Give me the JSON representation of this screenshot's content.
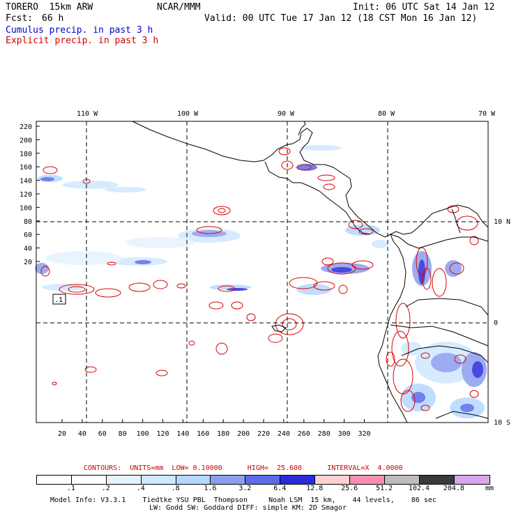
{
  "header": {
    "model": "TORERO  15km ARW",
    "org": "NCAR/MMM",
    "init": "Init: 06 UTC Sat 14 Jan 12",
    "fcst_label": "Fcst:",
    "fcst_value": "66 h",
    "valid": "Valid: 00 UTC Tue 17 Jan 12 (18 CST Mon 16 Jan 12)",
    "field1": "Cumulus precip. in past 3 h",
    "field2": "Explicit precip. in past 3 h",
    "field1_color": "#0000cc",
    "field2_color": "#cc0000"
  },
  "map": {
    "lon_labels": [
      "110 W",
      "100 W",
      "90 W",
      "80 W",
      "70 W"
    ],
    "lat_labels": [
      "10 N",
      "0",
      "10 S"
    ],
    "y_ticks": [
      "220",
      "200",
      "180",
      "160",
      "140",
      "120",
      "100",
      "80",
      "60",
      "40",
      "20"
    ],
    "x_ticks": [
      "20",
      "40",
      "60",
      "80",
      "100",
      "120",
      "140",
      "160",
      "180",
      "200",
      "220",
      "240",
      "260",
      "280",
      "300",
      "320"
    ],
    "box_label": ".1"
  },
  "contours": "CONTOURS:  UNITS=mm  LOW= 0.10000      HIGH=  25.600      INTERVAL=X  4.0000",
  "colorbar": {
    "labels": [
      ".1",
      ".2",
      ".4",
      ".8",
      "1.6",
      "3.2",
      "6.4",
      "12.8",
      "25.6",
      "51.2",
      "102.4",
      "204.8"
    ],
    "unit": "mm",
    "colors": [
      "#ffffff",
      "#ffffff",
      "#e6f3ff",
      "#cfe8ff",
      "#b4d8ff",
      "#8c9ef0",
      "#5a6ce8",
      "#2a2adc",
      "#ffd2d2",
      "#f88fb0",
      "#bdbdbd",
      "#3a3a3a",
      "#d8a6f0"
    ]
  },
  "model_info": {
    "line1": "Model Info: V3.3.1    Tiedtke YSU PBL  Thompson     Noah LSM  15 km,    44 levels,    86 sec",
    "line2": "LW: Godd SW: Goddard DIFF: simple KM: 2D Smagor"
  }
}
